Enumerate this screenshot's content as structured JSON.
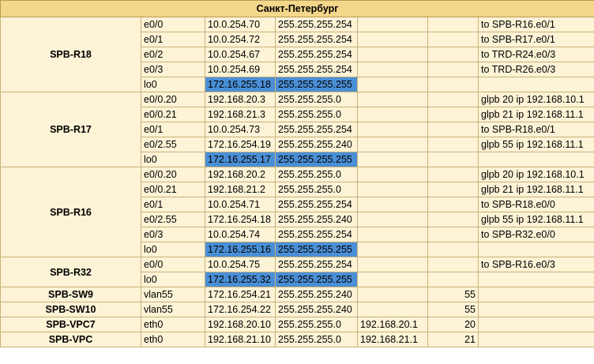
{
  "title": "Санкт-Петербург",
  "highlight_color": "#4a8fd6",
  "cell_color": "#fdf3d6",
  "header_color": "#f4d78a",
  "devices": [
    {
      "name": "SPB-R18",
      "rows": [
        {
          "iface": "e0/0",
          "ip": "10.0.254.70",
          "mask": "255.255.255.254",
          "gw": "",
          "vlan": "",
          "note": "to SPB-R16.e0/1",
          "hl": false
        },
        {
          "iface": "e0/1",
          "ip": "10.0.254.72",
          "mask": "255.255.255.254",
          "gw": "",
          "vlan": "",
          "note": "to SPB-R17.e0/1",
          "hl": false
        },
        {
          "iface": "e0/2",
          "ip": "10.0.254.67",
          "mask": "255.255.255.254",
          "gw": "",
          "vlan": "",
          "note": "to TRD-R24.e0/3",
          "hl": false
        },
        {
          "iface": "e0/3",
          "ip": "10.0.254.69",
          "mask": "255.255.255.254",
          "gw": "",
          "vlan": "",
          "note": "to TRD-R26.e0/3",
          "hl": false
        },
        {
          "iface": "lo0",
          "ip": "172.16.255.18",
          "mask": "255.255.255.255",
          "gw": "",
          "vlan": "",
          "note": "",
          "hl": true
        }
      ]
    },
    {
      "name": "SPB-R17",
      "rows": [
        {
          "iface": "e0/0.20",
          "ip": "192.168.20.3",
          "mask": "255.255.255.0",
          "gw": "",
          "vlan": "",
          "note": "glpb 20 ip 192.168.10.1",
          "hl": false
        },
        {
          "iface": "e0/0.21",
          "ip": "192.168.21.3",
          "mask": "255.255.255.0",
          "gw": "",
          "vlan": "",
          "note": "glpb 21 ip 192.168.11.1",
          "hl": false
        },
        {
          "iface": "e0/1",
          "ip": "10.0.254.73",
          "mask": "255.255.255.254",
          "gw": "",
          "vlan": "",
          "note": "to SPB-R18.e0/1",
          "hl": false
        },
        {
          "iface": "e0/2.55",
          "ip": "172.16.254.19",
          "mask": "255.255.255.240",
          "gw": "",
          "vlan": "",
          "note": "glpb 55 ip 192.168.11.1",
          "hl": false
        },
        {
          "iface": "lo0",
          "ip": "172.16.255.17",
          "mask": "255.255.255.255",
          "gw": "",
          "vlan": "",
          "note": "",
          "hl": true
        }
      ]
    },
    {
      "name": "SPB-R16",
      "rows": [
        {
          "iface": "e0/0.20",
          "ip": "192.168.20.2",
          "mask": "255.255.255.0",
          "gw": "",
          "vlan": "",
          "note": "glpb 20 ip 192.168.10.1",
          "hl": false
        },
        {
          "iface": "e0/0.21",
          "ip": "192.168.21.2",
          "mask": "255.255.255.0",
          "gw": "",
          "vlan": "",
          "note": "glpb 21 ip 192.168.11.1",
          "hl": false
        },
        {
          "iface": "e0/1",
          "ip": "10.0.254.71",
          "mask": "255.255.255.254",
          "gw": "",
          "vlan": "",
          "note": "to SPB-R18.e0/0",
          "hl": false
        },
        {
          "iface": "e0/2.55",
          "ip": "172.16.254.18",
          "mask": "255.255.255.240",
          "gw": "",
          "vlan": "",
          "note": "glpb 55 ip 192.168.11.1",
          "hl": false
        },
        {
          "iface": "e0/3",
          "ip": "10.0.254.74",
          "mask": "255.255.255.254",
          "gw": "",
          "vlan": "",
          "note": "to SPB-R32.e0/0",
          "hl": false
        },
        {
          "iface": "lo0",
          "ip": "172.16.255.16",
          "mask": "255.255.255.255",
          "gw": "",
          "vlan": "",
          "note": "",
          "hl": true
        }
      ]
    },
    {
      "name": "SPB-R32",
      "rows": [
        {
          "iface": "e0/0",
          "ip": "10.0.254.75",
          "mask": "255.255.255.254",
          "gw": "",
          "vlan": "",
          "note": "to SPB-R16.e0/3",
          "hl": false
        },
        {
          "iface": "lo0",
          "ip": "172.16.255.32",
          "mask": "255.255.255.255",
          "gw": "",
          "vlan": "",
          "note": "",
          "hl": true
        }
      ]
    },
    {
      "name": "SPB-SW9",
      "rows": [
        {
          "iface": "vlan55",
          "ip": "172.16.254.21",
          "mask": "255.255.255.240",
          "gw": "",
          "vlan": "55",
          "note": "",
          "hl": false
        }
      ]
    },
    {
      "name": "SPB-SW10",
      "rows": [
        {
          "iface": "vlan55",
          "ip": "172.16.254.22",
          "mask": "255.255.255.240",
          "gw": "",
          "vlan": "55",
          "note": "",
          "hl": false
        }
      ]
    },
    {
      "name": "SPB-VPC7",
      "rows": [
        {
          "iface": "eth0",
          "ip": "192.168.20.10",
          "mask": "255.255.255.0",
          "gw": "192.168.20.1",
          "vlan": "20",
          "note": "",
          "hl": false
        }
      ]
    },
    {
      "name": "SPB-VPC",
      "rows": [
        {
          "iface": "eth0",
          "ip": "192.168.21.10",
          "mask": "255.255.255.0",
          "gw": "192.168.21.1",
          "vlan": "21",
          "note": "",
          "hl": false
        }
      ]
    }
  ]
}
